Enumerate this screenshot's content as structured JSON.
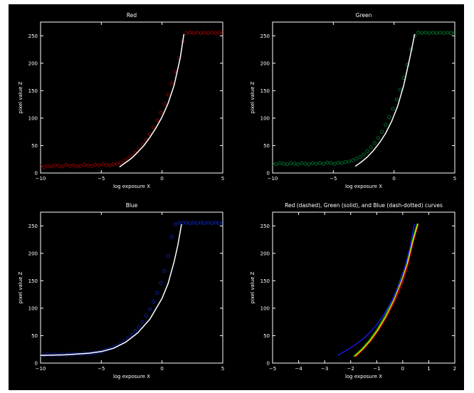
{
  "figure": {
    "background": "#000000",
    "axis_color": "#ffffff",
    "text_color": "#ffffff"
  },
  "chart_data": [
    {
      "type": "scatter",
      "title": "Red",
      "xlabel": "log exposure X",
      "ylabel": "pixel value Z",
      "xlim": [
        -10,
        5
      ],
      "ylim": [
        0,
        275
      ],
      "xticks": [
        -10,
        -5,
        0,
        5
      ],
      "yticks": [
        0,
        50,
        100,
        150,
        200,
        250
      ],
      "grid": false,
      "series": [
        {
          "kind": "scatter",
          "color": "#8b0000",
          "x": [
            -10,
            -9.7,
            -9.4,
            -9.1,
            -8.8,
            -8.5,
            -8.2,
            -7.9,
            -7.6,
            -7.3,
            -7.0,
            -6.7,
            -6.4,
            -6.1,
            -5.8,
            -5.5,
            -5.2,
            -4.9,
            -4.6,
            -4.3,
            -4.0,
            -3.7,
            -3.4,
            -3.1,
            -2.8,
            -2.5,
            -2.2,
            -1.9,
            -1.6,
            -1.3,
            -1.0,
            -0.7,
            -0.4,
            -0.1,
            0.2,
            0.5,
            0.8,
            1.1,
            1.4,
            1.7,
            2.0,
            2.3,
            2.6,
            2.9,
            3.2,
            3.5,
            3.8,
            4.1,
            4.4,
            4.7,
            5.0
          ],
          "y": [
            12,
            11,
            13,
            12,
            14,
            13,
            12,
            15,
            13,
            14,
            12,
            13,
            15,
            14,
            13,
            15,
            14,
            16,
            15,
            14,
            16,
            17,
            19,
            22,
            26,
            31,
            37,
            44,
            52,
            61,
            71,
            83,
            96,
            110,
            126,
            143,
            163,
            185,
            210,
            240,
            255,
            256,
            255,
            256,
            255,
            256,
            255,
            256,
            255,
            256,
            255
          ]
        },
        {
          "kind": "curve",
          "color": "#ffffff",
          "x": [
            -3.5,
            -3.0,
            -2.5,
            -2.0,
            -1.5,
            -1.0,
            -0.5,
            0.0,
            0.5,
            1.0,
            1.5,
            1.8
          ],
          "y": [
            11,
            19,
            27,
            38,
            50,
            65,
            82,
            102,
            127,
            160,
            210,
            253
          ]
        }
      ]
    },
    {
      "type": "scatter",
      "title": "Green",
      "xlabel": "log exposure X",
      "ylabel": "pixel value Z",
      "xlim": [
        -10,
        5
      ],
      "ylim": [
        0,
        275
      ],
      "xticks": [
        -10,
        -5,
        0,
        5
      ],
      "yticks": [
        0,
        50,
        100,
        150,
        200,
        250
      ],
      "grid": false,
      "series": [
        {
          "kind": "scatter",
          "color": "#006b2a",
          "x": [
            -10,
            -9.7,
            -9.4,
            -9.1,
            -8.8,
            -8.5,
            -8.2,
            -7.9,
            -7.6,
            -7.3,
            -7.0,
            -6.7,
            -6.4,
            -6.1,
            -5.8,
            -5.5,
            -5.2,
            -4.9,
            -4.6,
            -4.3,
            -4.0,
            -3.7,
            -3.4,
            -3.1,
            -2.8,
            -2.5,
            -2.2,
            -1.9,
            -1.6,
            -1.3,
            -1.0,
            -0.7,
            -0.4,
            -0.1,
            0.2,
            0.5,
            0.8,
            1.1,
            1.4,
            1.7,
            2.0,
            2.3,
            2.6,
            2.9,
            3.2,
            3.5,
            3.8,
            4.1,
            4.4,
            4.7,
            5.0
          ],
          "y": [
            17,
            16,
            18,
            17,
            16,
            18,
            17,
            16,
            18,
            17,
            16,
            18,
            17,
            18,
            17,
            19,
            18,
            17,
            19,
            18,
            20,
            21,
            23,
            26,
            29,
            34,
            40,
            47,
            55,
            64,
            75,
            88,
            102,
            117,
            134,
            152,
            173,
            197,
            225,
            250,
            256,
            255,
            256,
            255,
            256,
            255,
            256,
            255,
            256,
            255,
            256
          ]
        },
        {
          "kind": "curve",
          "color": "#ffffff",
          "x": [
            -3.2,
            -2.7,
            -2.2,
            -1.7,
            -1.2,
            -0.7,
            -0.2,
            0.3,
            0.8,
            1.3,
            1.7
          ],
          "y": [
            12,
            20,
            29,
            41,
            55,
            72,
            94,
            122,
            160,
            210,
            253
          ]
        }
      ]
    },
    {
      "type": "scatter",
      "title": "Blue",
      "xlabel": "log exposure X",
      "ylabel": "pixel value Z",
      "xlim": [
        -10,
        5
      ],
      "ylim": [
        0,
        275
      ],
      "xticks": [
        -10,
        -5,
        0,
        5
      ],
      "yticks": [
        0,
        50,
        100,
        150,
        200,
        250
      ],
      "grid": false,
      "series": [
        {
          "kind": "scatter",
          "color": "#0a1f9e",
          "x": [
            -10,
            -9.7,
            -9.4,
            -9.1,
            -8.8,
            -8.5,
            -8.2,
            -7.9,
            -7.6,
            -7.3,
            -7.0,
            -6.7,
            -6.4,
            -6.1,
            -5.8,
            -5.5,
            -5.2,
            -4.9,
            -4.6,
            -4.3,
            -4.0,
            -3.7,
            -3.4,
            -3.1,
            -2.8,
            -2.5,
            -2.2,
            -1.9,
            -1.6,
            -1.3,
            -1.0,
            -0.7,
            -0.4,
            -0.1,
            0.2,
            0.5,
            0.8,
            1.1,
            1.4,
            1.7,
            2.0,
            2.3,
            2.6,
            2.9,
            3.2,
            3.5,
            3.8,
            4.1,
            4.4,
            4.7,
            5.0
          ],
          "y": [
            15,
            14,
            16,
            15,
            16,
            15,
            16,
            15,
            17,
            16,
            17,
            16,
            18,
            17,
            18,
            19,
            20,
            22,
            24,
            26,
            29,
            32,
            36,
            40,
            45,
            51,
            58,
            66,
            75,
            86,
            98,
            112,
            128,
            146,
            168,
            195,
            230,
            253,
            256,
            255,
            256,
            255,
            256,
            255,
            256,
            255,
            256,
            255,
            256,
            255,
            256
          ]
        },
        {
          "kind": "curve",
          "color": "#ffffff",
          "x": [
            -10.0,
            -8.0,
            -6.0,
            -5.0,
            -4.0,
            -3.0,
            -2.0,
            -1.0,
            0.0,
            0.5,
            1.0,
            1.3,
            1.6
          ],
          "y": [
            14,
            15,
            18,
            21,
            27,
            38,
            55,
            80,
            118,
            145,
            185,
            215,
            253
          ]
        }
      ]
    },
    {
      "type": "line",
      "title": "Red (dashed), Green (solid), and Blue (dash-dotted) curves",
      "xlabel": "log exposure X",
      "ylabel": "pixel value Z",
      "xlim": [
        -5,
        2
      ],
      "ylim": [
        0,
        275
      ],
      "xticks": [
        -5,
        -4,
        -3,
        -2,
        -1,
        0,
        1,
        2
      ],
      "yticks": [
        0,
        50,
        100,
        150,
        200,
        250
      ],
      "grid": false,
      "series": [
        {
          "kind": "curve",
          "color": "#e60000",
          "x": [
            -1.8,
            -1.5,
            -1.2,
            -0.9,
            -0.6,
            -0.3,
            0.0,
            0.2,
            0.4,
            0.6
          ],
          "y": [
            12,
            26,
            42,
            62,
            86,
            114,
            148,
            180,
            220,
            254
          ]
        },
        {
          "kind": "curve",
          "color": "#00aa00",
          "x": [
            -1.9,
            -1.6,
            -1.3,
            -1.0,
            -0.7,
            -0.4,
            -0.1,
            0.15,
            0.35,
            0.55
          ],
          "y": [
            12,
            25,
            41,
            61,
            85,
            114,
            150,
            184,
            222,
            254
          ]
        },
        {
          "kind": "curve",
          "color": "#ffe600",
          "x": [
            -1.85,
            -1.55,
            -1.25,
            -0.95,
            -0.65,
            -0.35,
            -0.05,
            0.18,
            0.38,
            0.58
          ],
          "y": [
            12,
            25,
            41,
            61,
            85,
            114,
            149,
            182,
            221,
            254
          ]
        },
        {
          "kind": "curve",
          "color": "#1a1aff",
          "x": [
            -2.5,
            -2.2,
            -1.9,
            -1.6,
            -1.3,
            -1.0,
            -0.7,
            -0.4,
            -0.1,
            0.1,
            0.3,
            0.45
          ],
          "y": [
            14,
            22,
            31,
            41,
            54,
            70,
            90,
            115,
            148,
            178,
            215,
            254
          ]
        }
      ]
    }
  ]
}
